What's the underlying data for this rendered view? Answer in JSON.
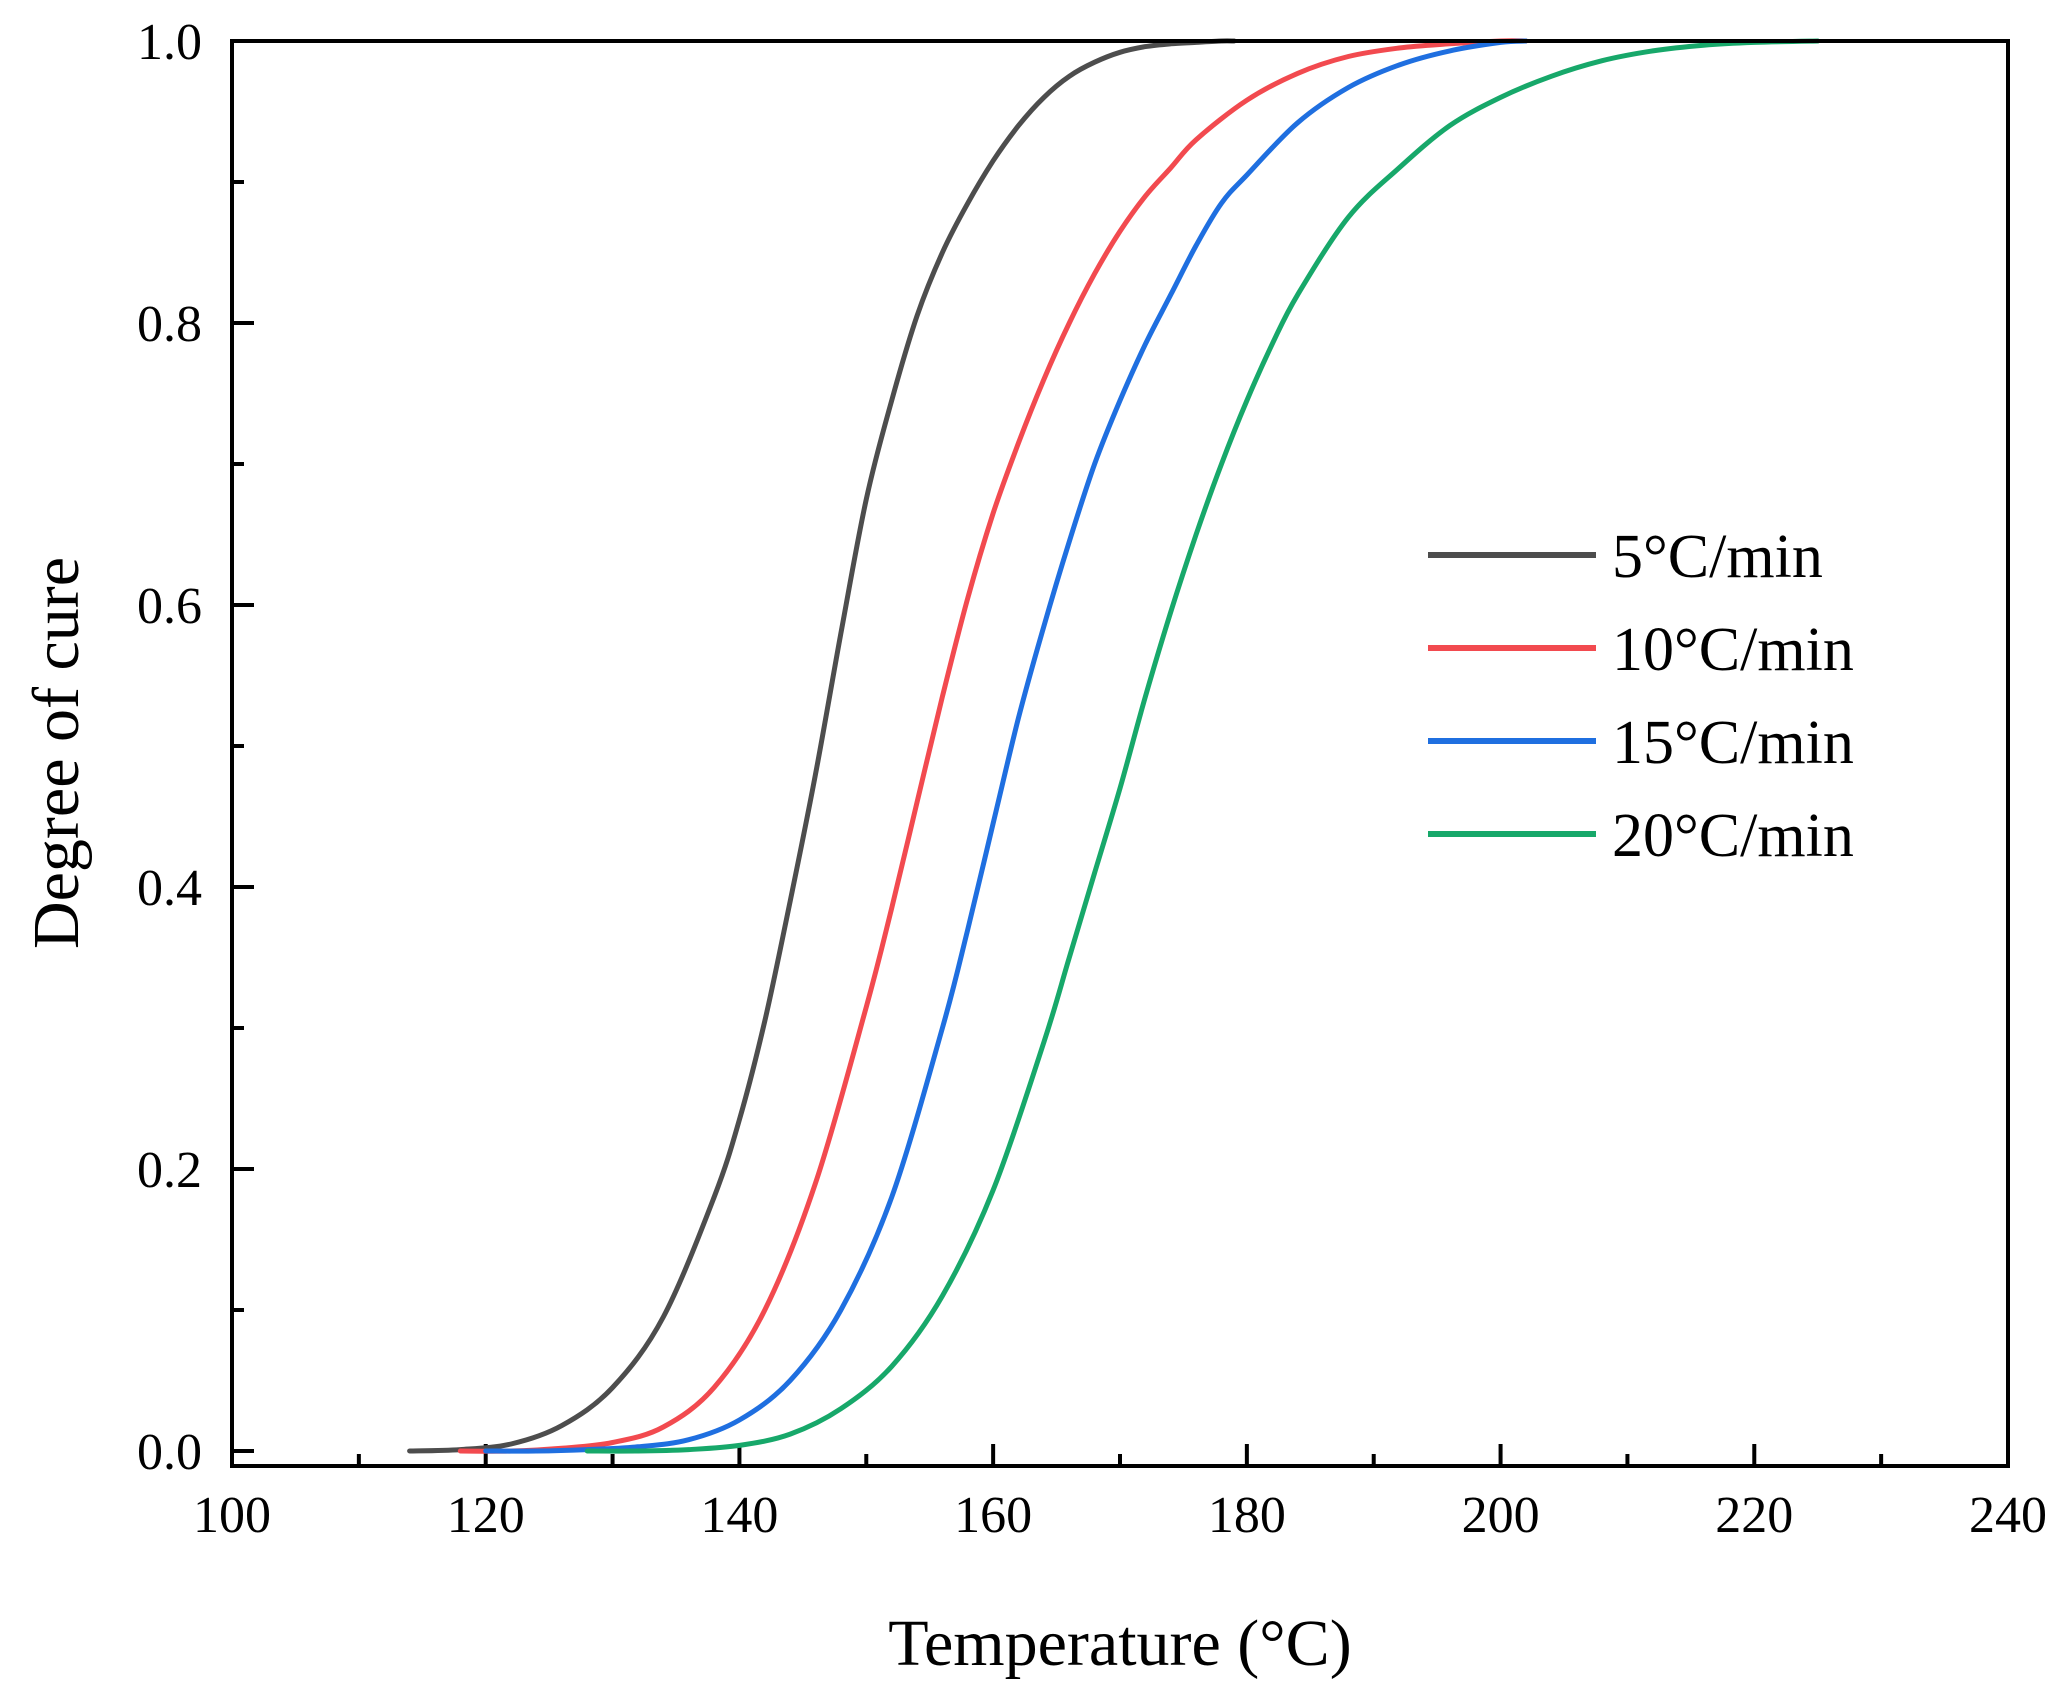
{
  "chart_data": {
    "type": "line",
    "title": "",
    "xlabel": "Temperature (°C)",
    "ylabel": "Degree of cure",
    "xlim": [
      100,
      240
    ],
    "ylim": [
      -0.01,
      1.0
    ],
    "x_major_ticks": [
      100,
      120,
      140,
      160,
      180,
      200,
      220,
      240
    ],
    "x_minor_ticks": [
      110,
      130,
      150,
      170,
      190,
      210,
      230
    ],
    "y_major_ticks": [
      0.0,
      0.2,
      0.4,
      0.6,
      0.8,
      1.0
    ],
    "y_minor_ticks": [
      0.1,
      0.3,
      0.5,
      0.7,
      0.9
    ],
    "x_tick_labels": [
      "100",
      "120",
      "140",
      "160",
      "180",
      "200",
      "220",
      "240"
    ],
    "y_tick_labels": [
      "0.0",
      "0.2",
      "0.4",
      "0.6",
      "0.8",
      "1.0"
    ],
    "grid": false,
    "legend_position": "center-right",
    "series": [
      {
        "name": "5°C/min",
        "color": "#4d4d4d",
        "x": [
          114,
          118,
          122,
          126,
          130,
          134,
          138,
          140,
          142,
          144,
          146,
          148,
          150,
          152,
          154,
          156,
          158,
          160,
          162,
          164,
          166,
          168,
          170,
          172,
          174,
          176,
          178,
          179
        ],
        "y": [
          0.0,
          0.001,
          0.005,
          0.018,
          0.045,
          0.095,
          0.18,
          0.235,
          0.305,
          0.39,
          0.48,
          0.58,
          0.675,
          0.745,
          0.805,
          0.85,
          0.885,
          0.915,
          0.94,
          0.96,
          0.975,
          0.985,
          0.992,
          0.996,
          0.998,
          0.999,
          1.0,
          1.0
        ]
      },
      {
        "name": "10°C/min",
        "color": "#f24a4f",
        "x": [
          118,
          122,
          126,
          130,
          134,
          138,
          142,
          146,
          150,
          152,
          154,
          156,
          158,
          160,
          162,
          164,
          166,
          168,
          170,
          172,
          174,
          176,
          180,
          184,
          188,
          192,
          196,
          200,
          202
        ],
        "y": [
          0.0,
          0.0,
          0.002,
          0.006,
          0.017,
          0.045,
          0.1,
          0.19,
          0.315,
          0.385,
          0.46,
          0.535,
          0.605,
          0.665,
          0.715,
          0.76,
          0.8,
          0.835,
          0.865,
          0.89,
          0.91,
          0.93,
          0.958,
          0.977,
          0.989,
          0.995,
          0.998,
          1.0,
          1.0
        ]
      },
      {
        "name": "15°C/min",
        "color": "#1f6fe0",
        "x": [
          120,
          124,
          128,
          132,
          136,
          140,
          144,
          148,
          152,
          156,
          158,
          160,
          162,
          164,
          166,
          168,
          170,
          172,
          174,
          176,
          178,
          180,
          184,
          188,
          192,
          196,
          200,
          202
        ],
        "y": [
          0.0,
          0.0,
          0.001,
          0.003,
          0.008,
          0.022,
          0.05,
          0.1,
          0.18,
          0.3,
          0.37,
          0.445,
          0.52,
          0.585,
          0.645,
          0.7,
          0.745,
          0.785,
          0.82,
          0.855,
          0.885,
          0.905,
          0.942,
          0.967,
          0.983,
          0.993,
          0.999,
          1.0
        ]
      },
      {
        "name": "20°C/min",
        "color": "#17a86a",
        "x": [
          128,
          132,
          136,
          140,
          144,
          148,
          152,
          156,
          160,
          164,
          166,
          168,
          170,
          172,
          174,
          176,
          178,
          180,
          182,
          184,
          188,
          192,
          196,
          200,
          204,
          208,
          212,
          216,
          220,
          225
        ],
        "y": [
          0.0,
          0.0,
          0.001,
          0.004,
          0.012,
          0.03,
          0.06,
          0.11,
          0.185,
          0.29,
          0.35,
          0.41,
          0.47,
          0.535,
          0.595,
          0.65,
          0.7,
          0.745,
          0.785,
          0.82,
          0.875,
          0.91,
          0.94,
          0.96,
          0.975,
          0.986,
          0.993,
          0.997,
          0.999,
          1.0
        ]
      }
    ]
  }
}
